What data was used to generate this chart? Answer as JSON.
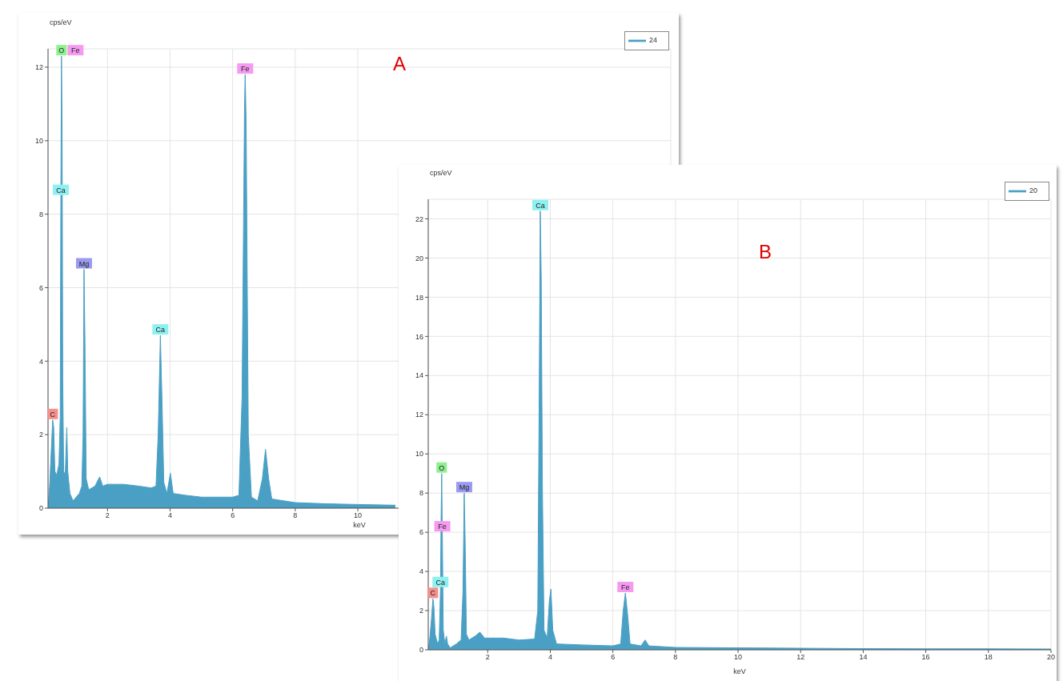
{
  "chart_data": [
    {
      "type": "area",
      "title": "A",
      "xlabel": "keV",
      "ylabel": "cps/eV",
      "xlim": [
        0.1,
        20
      ],
      "xticks": [
        2,
        4,
        6,
        8,
        10
      ],
      "ylim": [
        0,
        12.5
      ],
      "yticks": [
        0,
        2,
        4,
        6,
        8,
        10,
        12
      ],
      "grid": true,
      "legend": "top right",
      "series": [
        {
          "name": "24",
          "color": "#4aa0c4",
          "x": [
            0.1,
            0.15,
            0.2,
            0.25,
            0.28,
            0.32,
            0.38,
            0.45,
            0.49,
            0.51,
            0.53,
            0.55,
            0.57,
            0.6,
            0.65,
            0.7,
            0.73,
            0.8,
            0.9,
            1.0,
            1.1,
            1.18,
            1.22,
            1.25,
            1.28,
            1.32,
            1.4,
            1.6,
            1.75,
            1.85,
            2.0,
            2.5,
            3.0,
            3.4,
            3.55,
            3.62,
            3.69,
            3.74,
            3.8,
            3.9,
            4.01,
            4.1,
            4.5,
            5.0,
            5.5,
            6.0,
            6.2,
            6.3,
            6.38,
            6.4,
            6.43,
            6.5,
            6.6,
            6.8,
            6.95,
            7.05,
            7.15,
            7.25,
            8.0,
            9.0,
            10.0,
            11.2
          ],
          "values": [
            0,
            0.6,
            1.5,
            2.4,
            2.2,
            1.0,
            0.9,
            1.2,
            2.5,
            8.5,
            12.3,
            10.3,
            3.5,
            1.0,
            0.9,
            2.2,
            1.0,
            0.4,
            0.2,
            0.3,
            0.4,
            0.6,
            2.0,
            6.5,
            4.5,
            0.8,
            0.5,
            0.6,
            0.85,
            0.6,
            0.65,
            0.65,
            0.6,
            0.55,
            0.6,
            2.0,
            4.7,
            3.0,
            0.7,
            0.4,
            0.95,
            0.4,
            0.35,
            0.3,
            0.3,
            0.3,
            0.35,
            3.0,
            11.0,
            11.8,
            10.5,
            2.0,
            0.3,
            0.2,
            0.8,
            1.6,
            0.8,
            0.25,
            0.15,
            0.12,
            0.1,
            0.08
          ]
        }
      ],
      "annotations": [
        {
          "text": "O",
          "x": 0.53,
          "y": 12.3
        },
        {
          "text": "Fe",
          "x": 0.53,
          "y": 12.3
        },
        {
          "text": "C",
          "x": 0.25,
          "y": 2.4
        },
        {
          "text": "Ca",
          "x": 0.51,
          "y": 8.5
        },
        {
          "text": "Mg",
          "x": 1.25,
          "y": 6.5
        },
        {
          "text": "Ca",
          "x": 3.69,
          "y": 4.7
        },
        {
          "text": "Fe",
          "x": 6.4,
          "y": 11.8
        }
      ]
    },
    {
      "type": "area",
      "title": "B",
      "xlabel": "keV",
      "ylabel": "cps/eV",
      "xlim": [
        0.1,
        20
      ],
      "xticks": [
        2,
        4,
        6,
        8,
        10,
        12,
        14,
        16,
        18,
        20
      ],
      "ylim": [
        0,
        23
      ],
      "yticks": [
        0,
        2,
        4,
        6,
        8,
        10,
        12,
        14,
        16,
        18,
        20,
        22
      ],
      "grid": true,
      "legend": "top right",
      "series": [
        {
          "name": "20",
          "color": "#4aa0c4",
          "x": [
            0.1,
            0.15,
            0.2,
            0.25,
            0.28,
            0.32,
            0.4,
            0.45,
            0.49,
            0.51,
            0.53,
            0.55,
            0.58,
            0.63,
            0.68,
            0.72,
            0.8,
            1.0,
            1.15,
            1.21,
            1.25,
            1.28,
            1.32,
            1.4,
            1.6,
            1.75,
            1.9,
            2.5,
            3.0,
            3.5,
            3.6,
            3.65,
            3.68,
            3.71,
            3.75,
            3.8,
            3.9,
            3.97,
            4.02,
            4.08,
            4.2,
            5.0,
            6.0,
            6.25,
            6.33,
            6.4,
            6.47,
            6.55,
            6.9,
            7.03,
            7.15,
            8,
            10,
            12,
            14,
            16,
            18,
            20
          ],
          "values": [
            0,
            0.6,
            1.5,
            2.6,
            2.2,
            0.8,
            0.3,
            0.5,
            3.0,
            6.5,
            9.0,
            6.0,
            1.0,
            0.3,
            0.7,
            0.3,
            0.1,
            0.3,
            0.5,
            3.0,
            8.0,
            5.5,
            0.8,
            0.5,
            0.7,
            0.9,
            0.6,
            0.6,
            0.5,
            0.55,
            2.0,
            14,
            22.4,
            19,
            8,
            1.0,
            0.6,
            2.5,
            3.1,
            1.0,
            0.3,
            0.25,
            0.2,
            0.3,
            2.0,
            2.9,
            1.8,
            0.3,
            0.2,
            0.5,
            0.2,
            0.12,
            0.1,
            0.08,
            0.06,
            0.05,
            0.05,
            0.04
          ]
        }
      ],
      "annotations": [
        {
          "text": "Ca",
          "x": 3.68,
          "y": 22.4
        },
        {
          "text": "O",
          "x": 0.53,
          "y": 9.0
        },
        {
          "text": "Mg",
          "x": 1.25,
          "y": 8.0
        },
        {
          "text": "C",
          "x": 0.25,
          "y": 2.6
        },
        {
          "text": "Fe",
          "x": 0.55,
          "y": 6.0
        },
        {
          "text": "Ca",
          "x": 0.49,
          "y": 3.0
        },
        {
          "text": "Fe",
          "x": 6.4,
          "y": 2.9
        }
      ]
    }
  ]
}
